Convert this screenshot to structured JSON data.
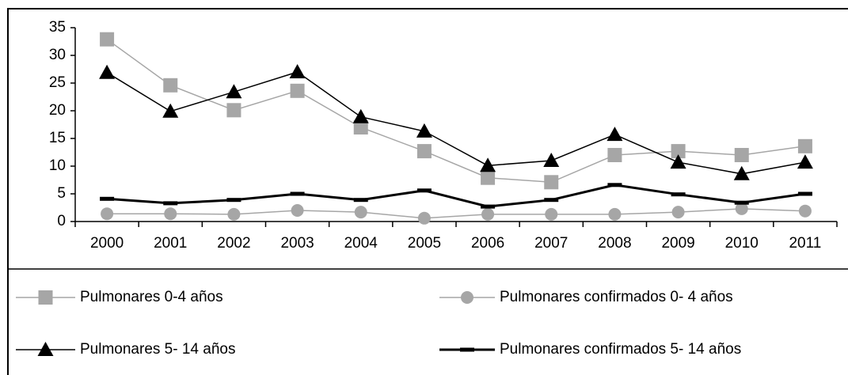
{
  "chart_data": {
    "type": "line",
    "categories": [
      "2000",
      "2001",
      "2002",
      "2003",
      "2004",
      "2005",
      "2006",
      "2007",
      "2008",
      "2009",
      "2010",
      "2011"
    ],
    "ylim": [
      0,
      35
    ],
    "yticks": [
      0,
      5,
      10,
      15,
      20,
      25,
      30,
      35
    ],
    "series": [
      {
        "name": "Pulmonares 0-4 años",
        "color": "#a6a6a6",
        "marker": "square",
        "line_width": 1.5,
        "values": [
          32.9,
          24.6,
          20.1,
          23.6,
          17,
          12.7,
          7.9,
          7.1,
          12,
          12.7,
          12,
          13.6
        ]
      },
      {
        "name": "Pulmonares confirmados 0- 4 años",
        "color": "#a6a6a6",
        "marker": "circle",
        "line_width": 1.5,
        "values": [
          1.4,
          1.4,
          1.3,
          2,
          1.7,
          0.6,
          1.3,
          1.3,
          1.3,
          1.7,
          2.3,
          1.9
        ]
      },
      {
        "name": "Pulmonares 5- 14 años",
        "color": "#000000",
        "marker": "triangle",
        "line_width": 1.5,
        "values": [
          26.9,
          19.9,
          23.4,
          27,
          18.9,
          16.3,
          10.1,
          11,
          15.7,
          10.7,
          8.6,
          10.7
        ]
      },
      {
        "name": "Pulmonares confirmados 5- 14 años",
        "color": "#000000",
        "marker": "dash",
        "line_width": 3,
        "values": [
          4.1,
          3.3,
          3.9,
          5,
          3.9,
          5.6,
          2.7,
          3.9,
          6.6,
          4.9,
          3.4,
          5
        ]
      }
    ]
  }
}
